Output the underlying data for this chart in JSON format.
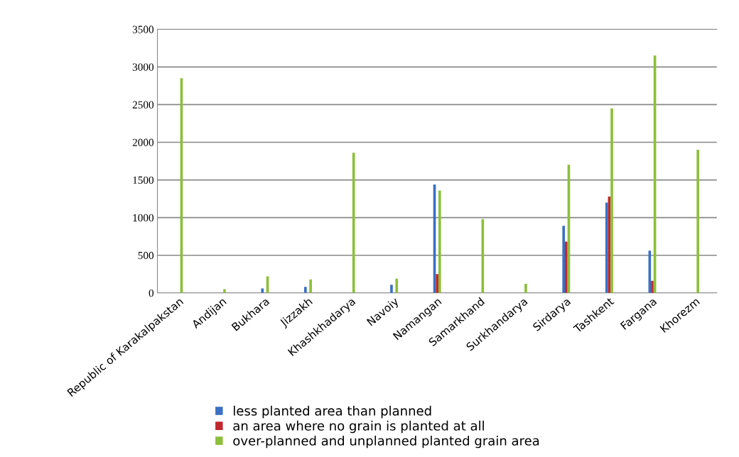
{
  "chart_data": {
    "type": "bar",
    "categories": [
      "Republic of Karakalpakstan",
      "Andijan",
      "Bukhara",
      "Jizzakh",
      "Khashkhadarya",
      "Navoiy",
      "Namangan",
      "Samarkhand",
      "Surkhandarya",
      "Sirdarya",
      "Tashkent",
      "Fargana",
      "Khorezm"
    ],
    "series": [
      {
        "name": "less planted area than planned",
        "color": "#3a6fc4",
        "values": [
          null,
          null,
          60,
          80,
          null,
          110,
          1440,
          null,
          null,
          890,
          1200,
          560,
          null
        ]
      },
      {
        "name": "an area where no grain is planted at all",
        "color": "#c0282d",
        "values": [
          null,
          null,
          null,
          null,
          null,
          null,
          250,
          null,
          null,
          680,
          1280,
          160,
          null
        ]
      },
      {
        "name": "over-planned and unplanned planted grain area",
        "color": "#8cbf3a",
        "values": [
          2850,
          50,
          220,
          180,
          1860,
          190,
          1360,
          980,
          120,
          1700,
          2450,
          3150,
          1900
        ]
      }
    ],
    "ylim": [
      0,
      3500
    ],
    "yticks": [
      0,
      500,
      1000,
      1500,
      2000,
      2500,
      3000,
      3500
    ],
    "grid": "y",
    "legend": "bottom"
  }
}
